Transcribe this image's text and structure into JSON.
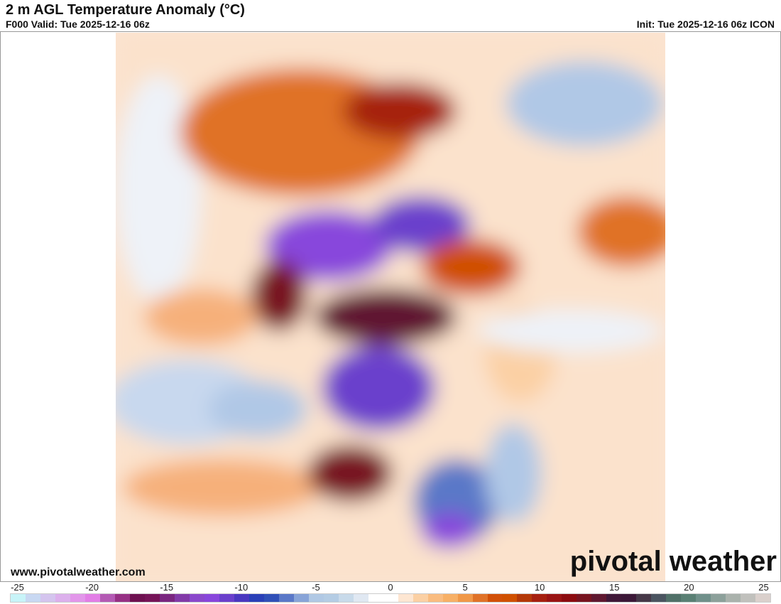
{
  "header": {
    "title": "2 m AGL Temperature Anomaly (°C)",
    "valid": "F000 Valid: Tue 2025-12-16 06z",
    "init": "Init: Tue 2025-12-16 06z ICON"
  },
  "footer": {
    "url": "www.pivotalweather.com",
    "logo": "pivotal weather"
  },
  "colorbar": {
    "ticks": [
      "-25",
      "-20",
      "-15",
      "-10",
      "-5",
      "0",
      "5",
      "10",
      "15",
      "20",
      "25"
    ],
    "tick_values": [
      -25,
      -20,
      -15,
      -10,
      -5,
      0,
      5,
      10,
      15,
      20,
      25
    ],
    "colors": [
      "#c8f4f8",
      "#c8d8f2",
      "#d4c4ee",
      "#dcb0ec",
      "#e296ea",
      "#e27ee6",
      "#b45ab4",
      "#963084",
      "#6e1050",
      "#761458",
      "#7a2680",
      "#823aa8",
      "#8a48cc",
      "#8846dc",
      "#6a40cc",
      "#4a38c0",
      "#2a40b8",
      "#3050b8",
      "#5a78c8",
      "#88a4d8",
      "#b0c8e4",
      "#b4cce4",
      "#c8daea",
      "#e0e8f2",
      "#ffffff",
      "#ffffff",
      "#fde6d2",
      "#fbd0a4",
      "#f9bc80",
      "#f7b066",
      "#f09848",
      "#e07228",
      "#d25008",
      "#d05000",
      "#b43808",
      "#a62010",
      "#9a1414",
      "#8c0c10",
      "#781420",
      "#601830",
      "#401838",
      "#3c1838",
      "#463848",
      "#4a5460",
      "#507068",
      "#5a8074",
      "#70908a",
      "#8ca09a",
      "#aab2ac",
      "#c0c0bc",
      "#dad0cc"
    ]
  }
}
